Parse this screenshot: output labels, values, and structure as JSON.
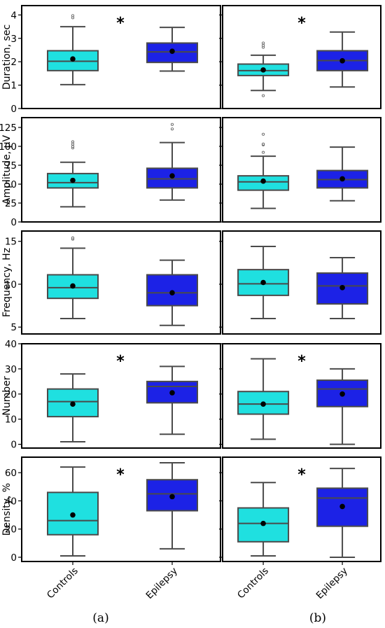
{
  "colors": {
    "controls": "#1fe0e0",
    "epilepsy": "#1c22e6",
    "edge": "#4a4a4a",
    "mean": "#000000"
  },
  "group_labels": [
    "Controls",
    "Epilepsy"
  ],
  "panel_labels": {
    "a": "(a)",
    "b": "(b)"
  },
  "chart_data": [
    {
      "type": "box",
      "panel": "a",
      "row": 0,
      "ylabel": "Duration, sec",
      "ylim": [
        0,
        4.4
      ],
      "yticks": [
        0,
        1,
        2,
        3,
        4
      ],
      "significance": "*",
      "series": [
        {
          "name": "Controls",
          "whisker_low": 1.02,
          "q1": 1.62,
          "median": 2.02,
          "q3": 2.47,
          "whisker_high": 3.5,
          "mean": 2.12,
          "outliers": [
            3.88,
            3.97
          ]
        },
        {
          "name": "Epilepsy",
          "whisker_low": 1.6,
          "q1": 1.97,
          "median": 2.42,
          "q3": 2.8,
          "whisker_high": 3.47,
          "mean": 2.45,
          "outliers": []
        }
      ]
    },
    {
      "type": "box",
      "panel": "b",
      "row": 0,
      "ylabel": "",
      "ylim": [
        0,
        4.4
      ],
      "yticks": [
        0,
        1,
        2,
        3,
        4
      ],
      "significance": "*",
      "series": [
        {
          "name": "Controls",
          "whisker_low": 0.77,
          "q1": 1.41,
          "median": 1.62,
          "q3": 1.9,
          "whisker_high": 2.28,
          "mean": 1.65,
          "outliers": [
            0.55,
            2.62,
            2.7,
            2.8
          ]
        },
        {
          "name": "Epilepsy",
          "whisker_low": 0.92,
          "q1": 1.62,
          "median": 2.05,
          "q3": 2.47,
          "whisker_high": 3.27,
          "mean": 2.04,
          "outliers": []
        }
      ]
    },
    {
      "type": "box",
      "panel": "a",
      "row": 1,
      "ylabel": "Amplitude, µV",
      "ylim": [
        0,
        138
      ],
      "yticks": [
        0,
        25,
        50,
        75,
        100,
        125
      ],
      "significance": "",
      "series": [
        {
          "name": "Controls",
          "whisker_low": 20,
          "q1": 45,
          "median": 52,
          "q3": 64,
          "whisker_high": 79,
          "mean": 55,
          "outliers": [
            98,
            100,
            103,
            106
          ]
        },
        {
          "name": "Epilepsy",
          "whisker_low": 29,
          "q1": 45,
          "median": 57,
          "q3": 71,
          "whisker_high": 105,
          "mean": 61,
          "outliers": [
            123,
            129
          ]
        }
      ]
    },
    {
      "type": "box",
      "panel": "b",
      "row": 1,
      "ylabel": "",
      "ylim": [
        0,
        138
      ],
      "yticks": [
        0,
        25,
        50,
        75,
        100,
        125
      ],
      "significance": "",
      "series": [
        {
          "name": "Controls",
          "whisker_low": 18,
          "q1": 42,
          "median": 53,
          "q3": 61,
          "whisker_high": 87,
          "mean": 54,
          "outliers": [
            92,
            102,
            103,
            116
          ]
        },
        {
          "name": "Epilepsy",
          "whisker_low": 28,
          "q1": 45,
          "median": 56,
          "q3": 68,
          "whisker_high": 99,
          "mean": 57,
          "outliers": []
        }
      ]
    },
    {
      "type": "box",
      "panel": "a",
      "row": 2,
      "ylabel": "Frequency, Hz",
      "ylim": [
        4.2,
        16.2
      ],
      "yticks": [
        5,
        10,
        15
      ],
      "significance": "",
      "series": [
        {
          "name": "Controls",
          "whisker_low": 6,
          "q1": 8.35,
          "median": 9.6,
          "q3": 11.1,
          "whisker_high": 14.2,
          "mean": 9.8,
          "outliers": [
            15.25,
            15.4
          ]
        },
        {
          "name": "Epilepsy",
          "whisker_low": 5.2,
          "q1": 7.5,
          "median": 9,
          "q3": 11.1,
          "whisker_high": 12.8,
          "mean": 9,
          "outliers": []
        }
      ]
    },
    {
      "type": "box",
      "panel": "b",
      "row": 2,
      "ylabel": "",
      "ylim": [
        4.2,
        16.2
      ],
      "yticks": [
        5,
        10,
        15
      ],
      "significance": "",
      "series": [
        {
          "name": "Controls",
          "whisker_low": 6,
          "q1": 8.7,
          "median": 10.05,
          "q3": 11.7,
          "whisker_high": 14.4,
          "mean": 10.2,
          "outliers": []
        },
        {
          "name": "Epilepsy",
          "whisker_low": 6,
          "q1": 7.7,
          "median": 9.8,
          "q3": 11.3,
          "whisker_high": 13.1,
          "mean": 9.6,
          "outliers": []
        }
      ]
    },
    {
      "type": "box",
      "panel": "a",
      "row": 3,
      "ylabel": "Number",
      "ylim": [
        -1.5,
        40
      ],
      "yticks": [
        0,
        10,
        20,
        30,
        40
      ],
      "significance": "*",
      "series": [
        {
          "name": "Controls",
          "whisker_low": 1,
          "q1": 11,
          "median": 17,
          "q3": 22,
          "whisker_high": 28,
          "mean": 16,
          "outliers": []
        },
        {
          "name": "Epilepsy",
          "whisker_low": 4,
          "q1": 16.5,
          "median": 23,
          "q3": 25,
          "whisker_high": 31,
          "mean": 20.5,
          "outliers": []
        }
      ]
    },
    {
      "type": "box",
      "panel": "b",
      "row": 3,
      "ylabel": "",
      "ylim": [
        -1.5,
        40
      ],
      "yticks": [
        0,
        10,
        20,
        30,
        40
      ],
      "significance": "*",
      "series": [
        {
          "name": "Controls",
          "whisker_low": 2,
          "q1": 12,
          "median": 16,
          "q3": 21,
          "whisker_high": 34,
          "mean": 16,
          "outliers": []
        },
        {
          "name": "Epilepsy",
          "whisker_low": 0,
          "q1": 15,
          "median": 22,
          "q3": 25.5,
          "whisker_high": 30,
          "mean": 20,
          "outliers": []
        }
      ]
    },
    {
      "type": "box",
      "panel": "a",
      "row": 4,
      "ylabel": "Density, %",
      "ylim": [
        -3,
        71
      ],
      "yticks": [
        0,
        20,
        40,
        60
      ],
      "significance": "*",
      "series": [
        {
          "name": "Controls",
          "whisker_low": 1,
          "q1": 16,
          "median": 26,
          "q3": 46,
          "whisker_high": 64,
          "mean": 30,
          "outliers": []
        },
        {
          "name": "Epilepsy",
          "whisker_low": 6,
          "q1": 33,
          "median": 45,
          "q3": 55,
          "whisker_high": 67,
          "mean": 43,
          "outliers": []
        }
      ]
    },
    {
      "type": "box",
      "panel": "b",
      "row": 4,
      "ylabel": "",
      "ylim": [
        -3,
        71
      ],
      "yticks": [
        0,
        20,
        40,
        60
      ],
      "significance": "*",
      "series": [
        {
          "name": "Controls",
          "whisker_low": 1,
          "q1": 11,
          "median": 24,
          "q3": 35,
          "whisker_high": 53,
          "mean": 24,
          "outliers": []
        },
        {
          "name": "Epilepsy",
          "whisker_low": 0,
          "q1": 22,
          "median": 42,
          "q3": 49,
          "whisker_high": 63,
          "mean": 36,
          "outliers": []
        }
      ]
    }
  ]
}
